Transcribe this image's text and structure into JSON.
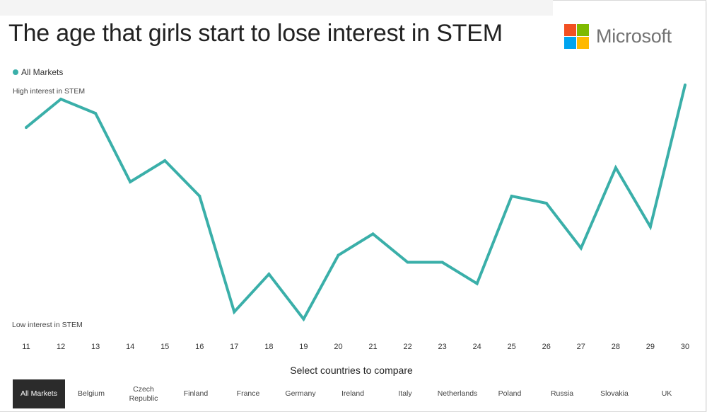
{
  "title": "The age that girls start to lose interest in STEM",
  "logo": {
    "text": "Microsoft",
    "colors": [
      "#f25022",
      "#7fba00",
      "#00a4ef",
      "#ffb900"
    ]
  },
  "legend": {
    "label": "All Markets",
    "color": "#3aafa9"
  },
  "chart_data": {
    "type": "line",
    "title": "The age that girls start to lose interest in STEM",
    "y_top_label": "High interest in STEM",
    "y_bottom_label": "Low interest in STEM",
    "x": [
      11,
      12,
      13,
      14,
      15,
      16,
      17,
      18,
      19,
      20,
      21,
      22,
      23,
      24,
      25,
      26,
      27,
      28,
      29,
      30
    ],
    "series": [
      {
        "name": "All Markets",
        "color": "#3aafa9",
        "values": [
          82,
          94,
          88,
          59,
          68,
          53,
          4,
          20,
          1,
          28,
          37,
          25,
          25,
          16,
          53,
          50,
          31,
          65,
          40,
          100
        ]
      }
    ],
    "ylim": [
      0,
      100
    ],
    "grid": false,
    "legend_position": "top-left"
  },
  "compare": {
    "label": "Select countries to compare",
    "buttons": [
      {
        "label": "All Markets",
        "active": true
      },
      {
        "label": "Belgium",
        "active": false
      },
      {
        "label": "Czech Republic",
        "active": false
      },
      {
        "label": "Finland",
        "active": false
      },
      {
        "label": "France",
        "active": false
      },
      {
        "label": "Germany",
        "active": false
      },
      {
        "label": "Ireland",
        "active": false
      },
      {
        "label": "Italy",
        "active": false
      },
      {
        "label": "Netherlands",
        "active": false
      },
      {
        "label": "Poland",
        "active": false
      },
      {
        "label": "Russia",
        "active": false
      },
      {
        "label": "Slovakia",
        "active": false
      },
      {
        "label": "UK",
        "active": false
      }
    ]
  }
}
